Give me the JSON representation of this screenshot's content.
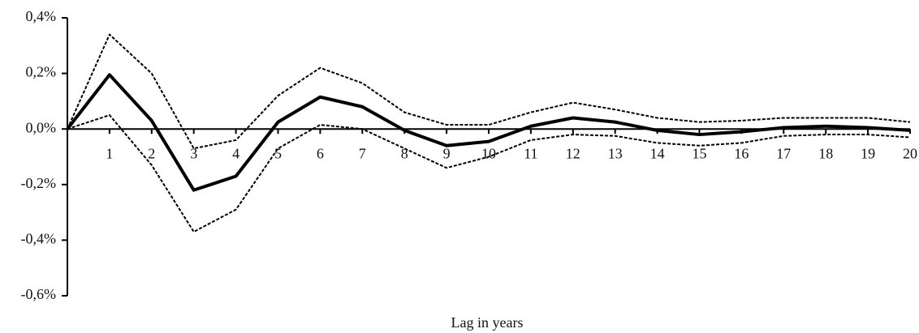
{
  "chart_data": {
    "type": "line",
    "x_label": "Lag in years",
    "x": [
      0,
      1,
      2,
      3,
      4,
      5,
      6,
      7,
      8,
      9,
      10,
      11,
      12,
      13,
      14,
      15,
      16,
      17,
      18,
      19,
      20
    ],
    "series": [
      {
        "color": "#000000",
        "dash": "solid",
        "width": 4,
        "values": [
          0,
          0.195,
          0.03,
          -0.22,
          -0.17,
          0.025,
          0.115,
          0.08,
          -0.005,
          -0.06,
          -0.045,
          0.01,
          0.04,
          0.025,
          -0.005,
          -0.02,
          -0.01,
          0.005,
          0.01,
          0.005,
          -0.005
        ]
      },
      {
        "color": "#000000",
        "dash": "dashed",
        "width": 2,
        "values": [
          0,
          0.34,
          0.2,
          -0.07,
          -0.04,
          0.12,
          0.22,
          0.165,
          0.06,
          0.015,
          0.015,
          0.06,
          0.095,
          0.07,
          0.04,
          0.025,
          0.03,
          0.04,
          0.04,
          0.04,
          0.025
        ]
      },
      {
        "color": "#000000",
        "dash": "dashed",
        "width": 2,
        "values": [
          0,
          0.05,
          -0.13,
          -0.37,
          -0.29,
          -0.07,
          0.015,
          0.0,
          -0.07,
          -0.14,
          -0.1,
          -0.04,
          -0.02,
          -0.025,
          -0.05,
          -0.06,
          -0.05,
          -0.025,
          -0.02,
          -0.02,
          -0.03
        ]
      }
    ],
    "xlim": [
      0,
      20
    ],
    "xticks": [
      1,
      2,
      3,
      4,
      5,
      6,
      7,
      8,
      9,
      10,
      11,
      12,
      13,
      14,
      15,
      16,
      17,
      18,
      19,
      20
    ],
    "ylim": [
      -0.6,
      0.4
    ],
    "yticks": [
      {
        "value": -0.6,
        "label": "-0,6%"
      },
      {
        "value": -0.4,
        "label": "-0,4%"
      },
      {
        "value": -0.2,
        "label": "-0,2%"
      },
      {
        "value": 0,
        "label": "0,0%"
      },
      {
        "value": 0.2,
        "label": "0,2%"
      },
      {
        "value": 0.4,
        "label": "0,4%"
      }
    ]
  }
}
